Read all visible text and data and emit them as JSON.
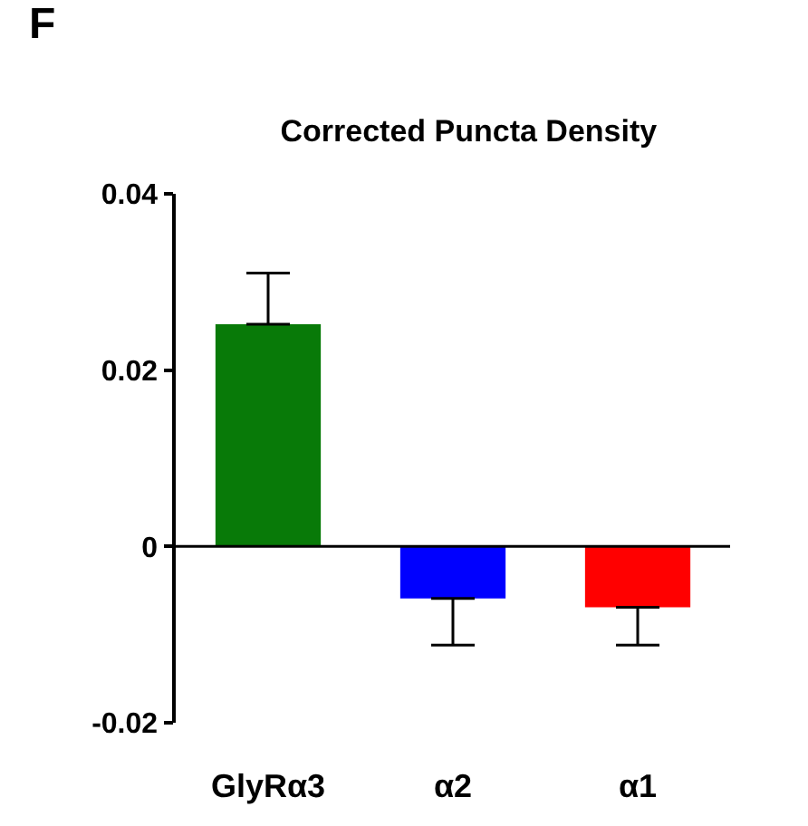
{
  "chart_data": {
    "type": "bar",
    "title": "Corrected Puncta Density",
    "categories": [
      "GlyRα3",
      "α2",
      "α1"
    ],
    "values": [
      0.0252,
      -0.0059,
      -0.0069
    ],
    "colors": [
      "#087a08",
      "#0000ff",
      "#ff0000"
    ],
    "errors": [
      [
        0.0252,
        0.031
      ],
      [
        -0.0112,
        -0.0059
      ],
      [
        -0.0112,
        -0.0069
      ]
    ],
    "ylim": [
      -0.02,
      0.04
    ],
    "yticks": [
      -0.02,
      0,
      0.02,
      0.04
    ],
    "annotations": [
      "F"
    ]
  }
}
